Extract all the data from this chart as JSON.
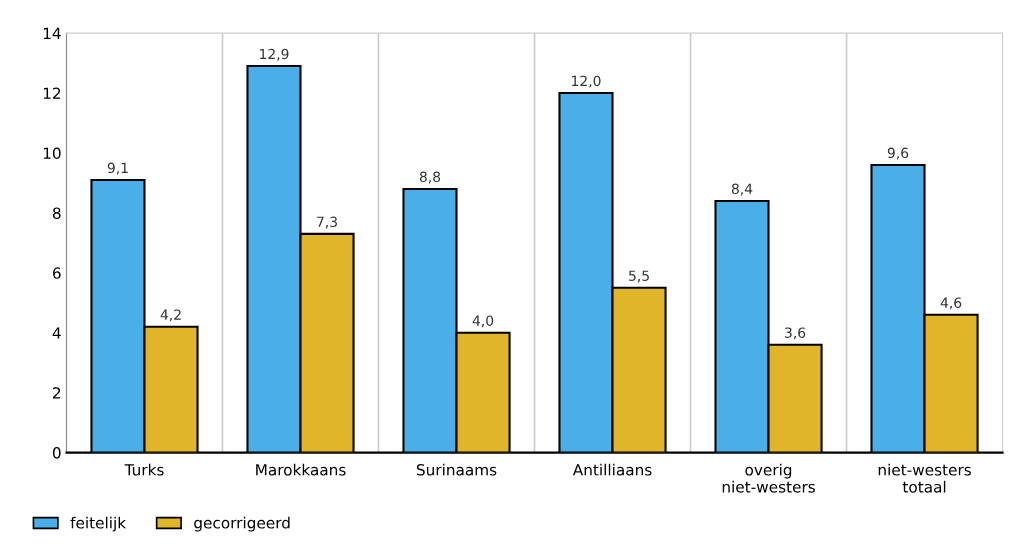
{
  "chart_data": {
    "type": "bar",
    "categories": [
      "Turks",
      "Marokkaans",
      "Surinaams",
      "Antilliaans",
      "overig\nniet-westers",
      "niet-westers\ntotaal"
    ],
    "series": [
      {
        "name": "feitelijk",
        "color": "#4aaee8",
        "values": [
          9.1,
          12.9,
          8.8,
          12.0,
          8.4,
          9.6
        ],
        "value_labels": [
          "9,1",
          "12,9",
          "8,8",
          "12,0",
          "8,4",
          "9,6"
        ]
      },
      {
        "name": "gecorrigeerd",
        "color": "#e0b52a",
        "values": [
          4.2,
          7.3,
          4.0,
          5.5,
          3.6,
          4.6
        ],
        "value_labels": [
          "4,2",
          "7,3",
          "4,0",
          "5,5",
          "3,6",
          "4,6"
        ]
      }
    ],
    "ylim": [
      0,
      14
    ],
    "yticks": [
      0,
      2,
      4,
      6,
      8,
      10,
      12,
      14
    ],
    "grid": "x",
    "legend": "bottom left"
  }
}
